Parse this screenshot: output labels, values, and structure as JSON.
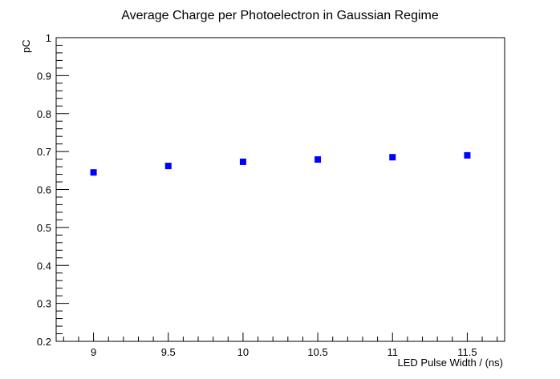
{
  "chart_data": {
    "type": "scatter",
    "title": "Average Charge per Photoelectron in Gaussian Regime",
    "xlabel": "LED Pulse Width / (ns)",
    "ylabel": "pC",
    "xlim": [
      8.75,
      11.75
    ],
    "ylim": [
      0.2,
      1.0
    ],
    "x_ticks": [
      "9",
      "9.5",
      "10",
      "10.5",
      "11",
      "11.5"
    ],
    "y_ticks": [
      "0.2",
      "0.3",
      "0.4",
      "0.5",
      "0.6",
      "0.7",
      "0.8",
      "0.9",
      "1"
    ],
    "series": [
      {
        "marker": "square",
        "color": "#0000ff",
        "x": [
          9,
          9.5,
          10,
          10.5,
          11,
          11.5
        ],
        "y": [
          0.645,
          0.662,
          0.673,
          0.679,
          0.685,
          0.69
        ]
      }
    ],
    "grid": false,
    "legend": "none"
  }
}
